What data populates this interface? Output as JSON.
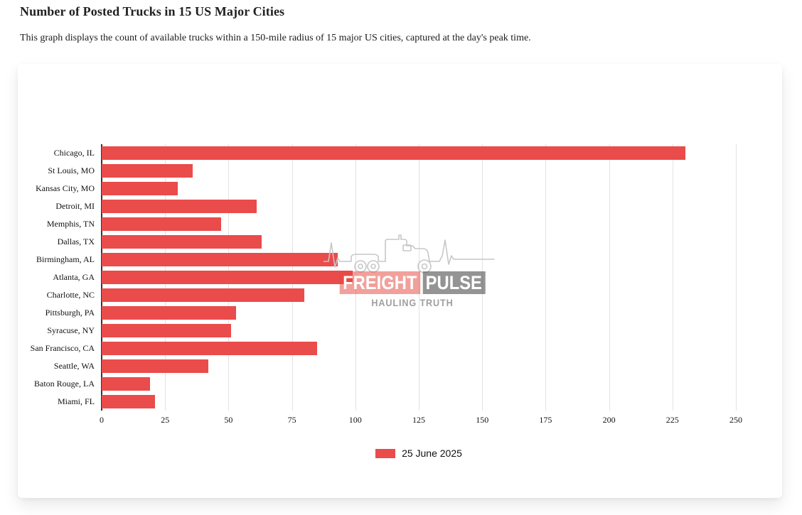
{
  "page": {
    "title": "Number of Posted Trucks in 15 US Major Cities",
    "subtitle": "This graph displays the count of available trucks within a 150-mile radius of 15 major US cities, captured at the day's peak time."
  },
  "chart_data": {
    "type": "bar",
    "orientation": "horizontal",
    "title": "Number of Posted Trucks in 15 US Major Cities",
    "categories": [
      "Chicago, IL",
      "St Louis, MO",
      "Kansas City, MO",
      "Detroit, MI",
      "Memphis, TN",
      "Dallas, TX",
      "Birmingham, AL",
      "Atlanta, GA",
      "Charlotte, NC",
      "Pittsburgh, PA",
      "Syracuse, NY",
      "San Francisco, CA",
      "Seattle, WA",
      "Baton Rouge, LA",
      "Miami, FL"
    ],
    "series": [
      {
        "name": "25 June 2025",
        "values": [
          230,
          36,
          30,
          61,
          47,
          63,
          93,
          99,
          80,
          53,
          51,
          85,
          42,
          19,
          21
        ]
      }
    ],
    "xlabel": "",
    "ylabel": "",
    "xlim": [
      0,
      250
    ],
    "x_ticks": [
      0,
      25,
      50,
      75,
      100,
      125,
      150,
      175,
      200,
      225,
      250
    ],
    "grid": true,
    "legend_position": "bottom",
    "bar_color": "#ea4b4b"
  },
  "legend": {
    "label": "25 June 2025",
    "swatch_color": "#ea4b4b"
  },
  "watermark": {
    "brand_left": "FREIGHT",
    "brand_right": "PULSE",
    "tagline": "HAULING TRUTH"
  },
  "colors": {
    "bar": "#ea4b4b",
    "gridline": "#e2e2e2",
    "axis_line": "#343434",
    "text": "#111111",
    "watermark_outline": "#c7c7c7"
  }
}
